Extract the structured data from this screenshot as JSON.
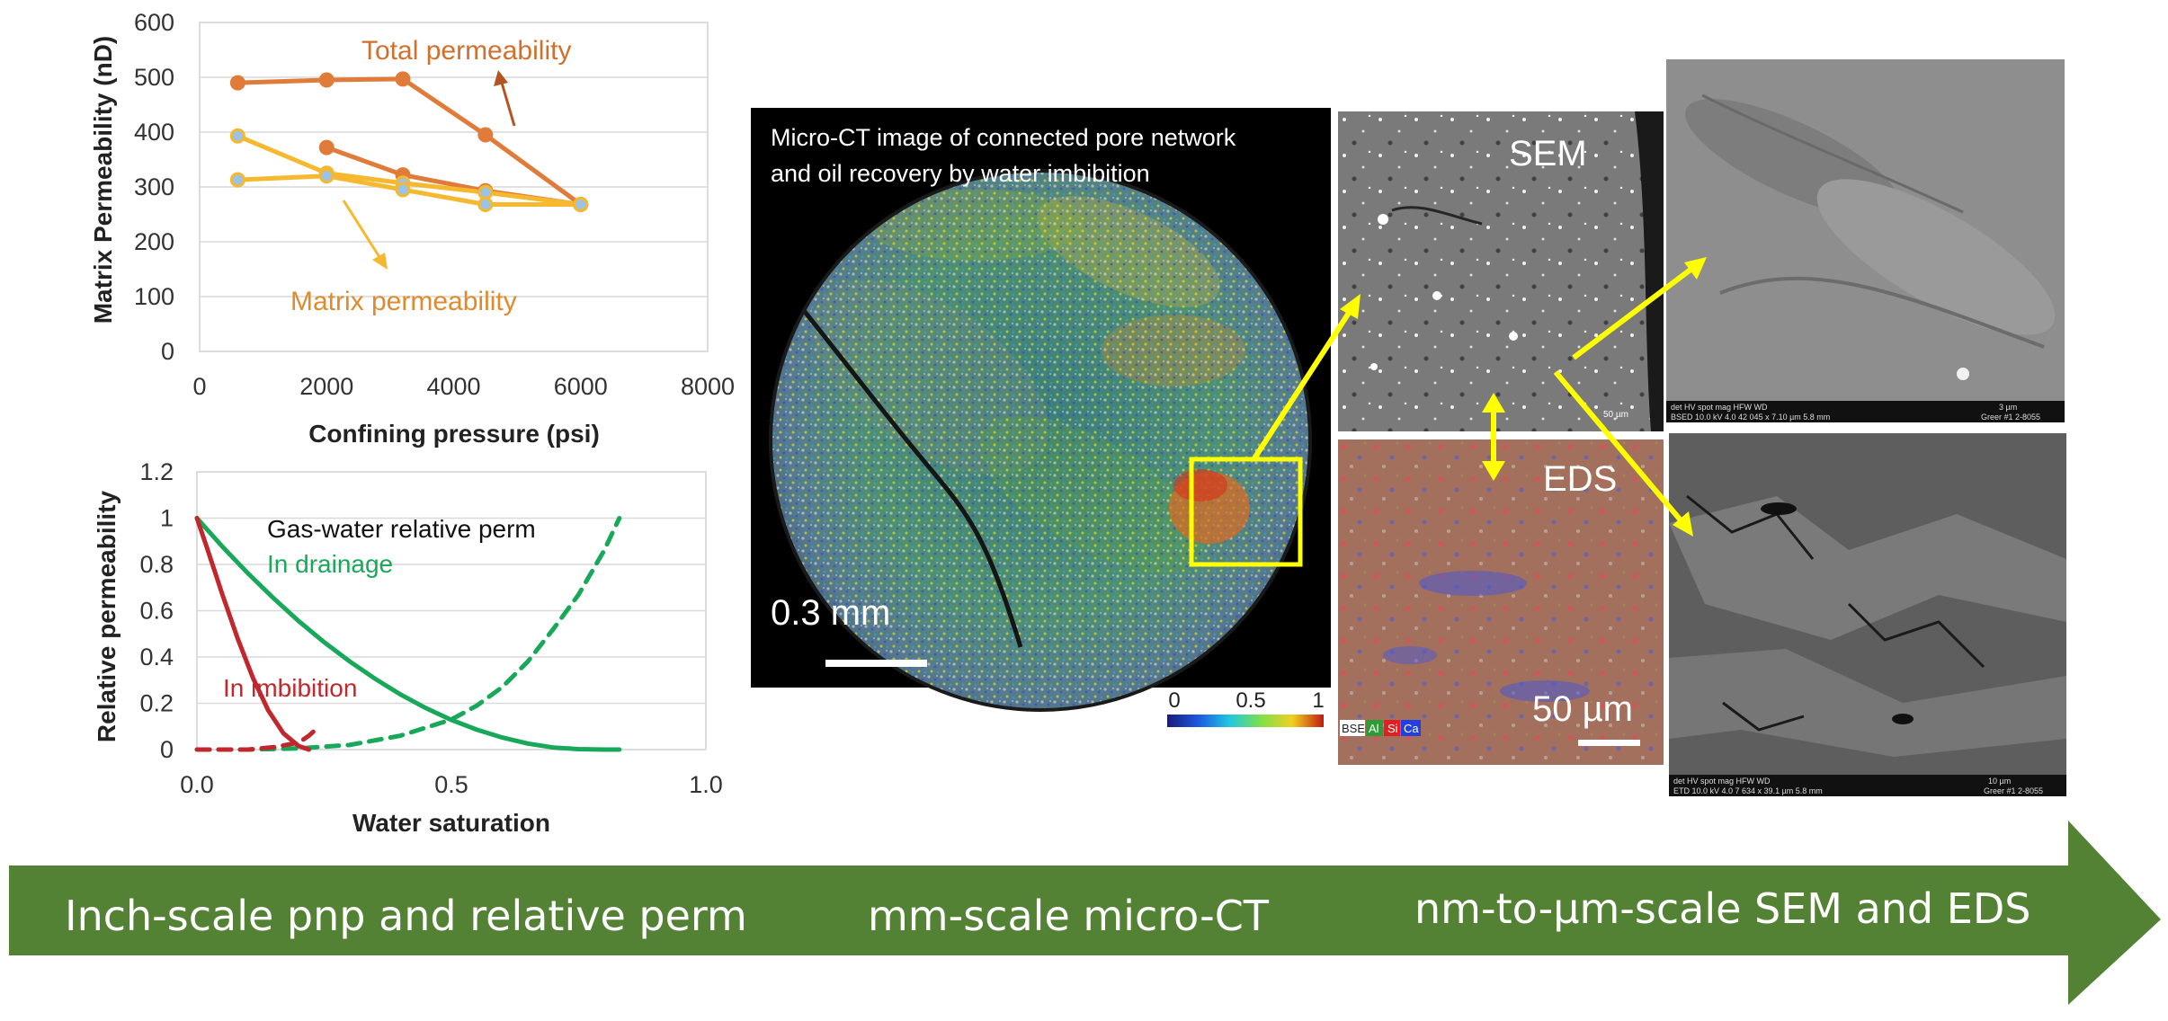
{
  "chart_data": [
    {
      "type": "line",
      "title": "",
      "xlabel": "Confining pressure (psi)",
      "ylabel": "Matrix Permeability (nD)",
      "xlim": [
        0,
        8000
      ],
      "ylim": [
        0,
        600
      ],
      "xticks": [
        0,
        2000,
        4000,
        6000,
        8000
      ],
      "yticks": [
        0,
        100,
        200,
        300,
        400,
        500,
        600
      ],
      "grid": true,
      "series": [
        {
          "group": "Total permeability",
          "color": "#e07b39",
          "x": [
            600,
            2000,
            3200,
            4500,
            6000
          ],
          "y": [
            490,
            495,
            497,
            395,
            268
          ]
        },
        {
          "group": "Total permeability",
          "color": "#e07b39",
          "x": [
            2000,
            3200,
            4500,
            6000
          ],
          "y": [
            372,
            322,
            293,
            268
          ]
        },
        {
          "group": "Matrix permeability",
          "color": "#f5b82e",
          "x": [
            600,
            2000,
            3200,
            4500,
            6000
          ],
          "y": [
            393,
            325,
            307,
            290,
            268
          ]
        },
        {
          "group": "Matrix permeability",
          "color": "#f5b82e",
          "x": [
            600,
            2000,
            3200,
            4500,
            6000
          ],
          "y": [
            313,
            320,
            295,
            268,
            268
          ]
        }
      ],
      "annotations": [
        "Total permeability",
        "Matrix permeability"
      ]
    },
    {
      "type": "line",
      "title": "",
      "xlabel": "Water saturation",
      "ylabel": "Relative permeability",
      "xlim": [
        0,
        1
      ],
      "ylim": [
        0,
        1.2
      ],
      "xticks": [
        "0.0",
        "0.5",
        "1.0"
      ],
      "yticks": [
        "0",
        "0.2",
        "0.4",
        "0.6",
        "0.8",
        "1",
        "1.2"
      ],
      "grid": true,
      "series": [
        {
          "group": "In drainage",
          "style": "solid",
          "color": "#18a85a",
          "x": [
            0,
            0.05,
            0.1,
            0.15,
            0.2,
            0.25,
            0.3,
            0.35,
            0.4,
            0.45,
            0.5,
            0.55,
            0.6,
            0.65,
            0.7,
            0.75,
            0.8,
            0.83
          ],
          "y": [
            1.0,
            0.877,
            0.762,
            0.655,
            0.555,
            0.464,
            0.381,
            0.306,
            0.238,
            0.179,
            0.128,
            0.086,
            0.052,
            0.026,
            0.009,
            0.002,
            0.0,
            0.0
          ]
        },
        {
          "group": "In drainage",
          "style": "dashed",
          "color": "#18a85a",
          "x": [
            0,
            0.1,
            0.2,
            0.3,
            0.4,
            0.5,
            0.55,
            0.6,
            0.65,
            0.7,
            0.75,
            0.8,
            0.83
          ],
          "y": [
            0.0,
            0.0,
            0.005,
            0.02,
            0.06,
            0.13,
            0.19,
            0.27,
            0.38,
            0.52,
            0.67,
            0.86,
            1.0
          ]
        },
        {
          "group": "In imbibition",
          "style": "solid",
          "color": "#c0282d",
          "x": [
            0,
            0.02,
            0.05,
            0.08,
            0.11,
            0.14,
            0.17,
            0.2,
            0.22
          ],
          "y": [
            1.0,
            0.87,
            0.67,
            0.48,
            0.31,
            0.17,
            0.07,
            0.015,
            0.0
          ]
        },
        {
          "group": "In imbibition",
          "style": "dashed",
          "color": "#c0282d",
          "x": [
            0,
            0.1,
            0.15,
            0.2,
            0.22,
            0.24
          ],
          "y": [
            0.0,
            0.0,
            0.01,
            0.03,
            0.06,
            0.1
          ]
        }
      ],
      "annotations": [
        "Gas-water relative perm",
        "In drainage",
        "In imbibition"
      ]
    }
  ],
  "microct": {
    "caption_line1": "Micro-CT image of connected pore network",
    "caption_line2": "and oil recovery by water imbibition",
    "scale_label": "0.3 mm",
    "colorbar_ticks": [
      "0",
      "0.5",
      "1"
    ]
  },
  "sem": {
    "label": "SEM",
    "scale_label": "50 µm"
  },
  "eds": {
    "label": "EDS",
    "scale_label": "50 µm",
    "legend": [
      {
        "text": "BSE",
        "color": "#ffffff"
      },
      {
        "text": "Al",
        "color": "#2e9c36"
      },
      {
        "text": "Si",
        "color": "#e02020"
      },
      {
        "text": "Ca",
        "color": "#2040e0"
      }
    ]
  },
  "sem_top": {
    "bar_header": "det  HV  spot  mag  HFW  WD",
    "bar_values": "BSED 10.0 kV 4.0 42 045 x 7.10 µm 5.8 mm",
    "bar_scale": "3 µm",
    "bar_sample": "Greer #1 2-8055"
  },
  "sem_bottom": {
    "bar_header": "det  HV  spot  mag  HFW  WD",
    "bar_values": "ETD 10.0 kV 4.0 7 634 x 39.1 µm 5.8 mm",
    "bar_scale": "10 µm",
    "bar_sample": "Greer #1 2-8055"
  },
  "arrow_banner": {
    "label_left": "Inch-scale pnp and relative perm",
    "label_mid": "mm-scale micro-CT",
    "label_right": "nm-to-µm-scale SEM and EDS",
    "color": "#548235"
  }
}
